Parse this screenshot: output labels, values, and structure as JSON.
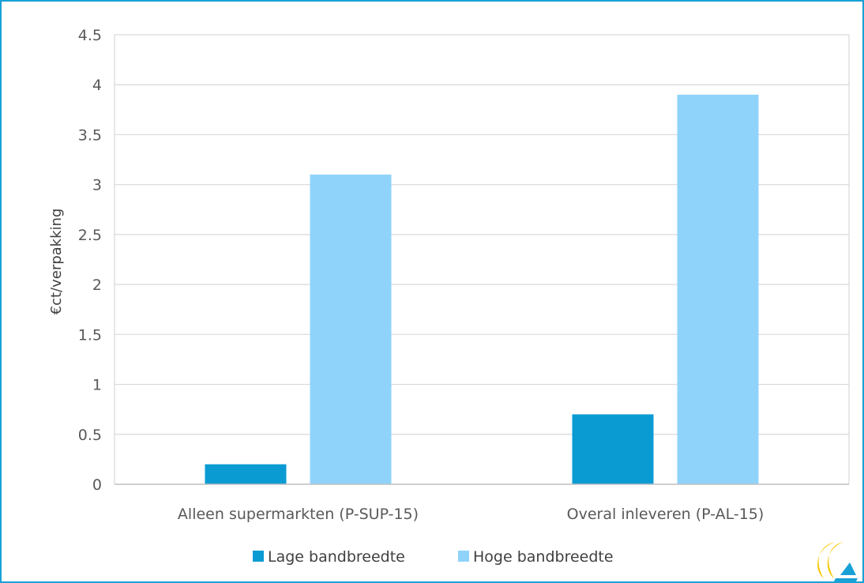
{
  "chart_data": {
    "type": "bar",
    "categories": [
      "Alleen supermarkten (P-SUP-15)",
      "Overal inleveren (P-AL-15)"
    ],
    "series": [
      {
        "name": "Lage bandbreedte",
        "values": [
          0.2,
          0.7
        ],
        "color": "#0b9bd3"
      },
      {
        "name": "Hoge bandbreedte",
        "values": [
          3.1,
          3.9
        ],
        "color": "#8fd3fb"
      }
    ],
    "ylabel": "€ct/verpakking",
    "xlabel": "",
    "ylim": [
      0,
      4.5
    ],
    "yticks": [
      "0",
      "0.5",
      "1",
      "1.5",
      "2",
      "2.5",
      "3",
      "3.5",
      "4",
      "4.5"
    ],
    "grid": true,
    "legend_position": "bottom-center"
  },
  "colors": {
    "frame": "#19a1d6",
    "grid": "#d9d9d9",
    "logo_yellow": "#f6c800",
    "logo_blue": "#19a1d6"
  },
  "logo_icon": "ce-delft-logo-icon"
}
